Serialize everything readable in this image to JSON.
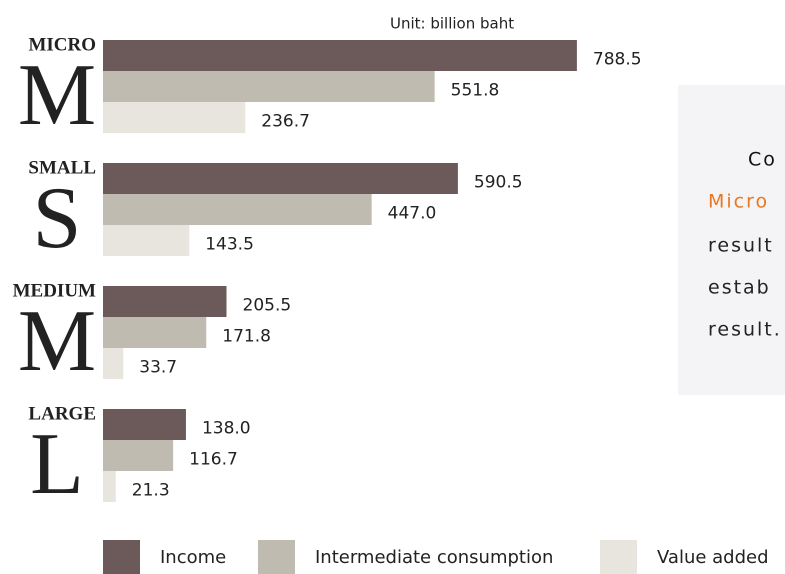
{
  "chart_data": {
    "type": "hbar-grouped",
    "unit": "Unit: billion baht",
    "categories": [
      "MICRO",
      "SMALL",
      "MEDIUM",
      "LARGE"
    ],
    "letters": [
      "M",
      "S",
      "M",
      "L"
    ],
    "series": [
      {
        "name": "Income",
        "color": "#6b5a59",
        "values": [
          788.5,
          590.5,
          205.5,
          138
        ],
        "value_labels": [
          "788.5",
          "590.5",
          "205.5",
          "138.0"
        ]
      },
      {
        "name": "Intermediate consumption",
        "color": "#c0bbb0",
        "values": [
          551.8,
          447,
          171.8,
          116.7
        ],
        "value_labels": [
          "551.8",
          "447.0",
          "171.8",
          "116.7"
        ]
      },
      {
        "name": "Value added",
        "color": "#e8e5de",
        "values": [
          236.7,
          143.5,
          33.7,
          21.3
        ],
        "value_labels": [
          "236.7",
          "143.5",
          "33.7",
          "21.3"
        ]
      }
    ]
  },
  "panel": {
    "lines": [
      "Co",
      "Micro",
      "result",
      "estab",
      "result."
    ]
  }
}
